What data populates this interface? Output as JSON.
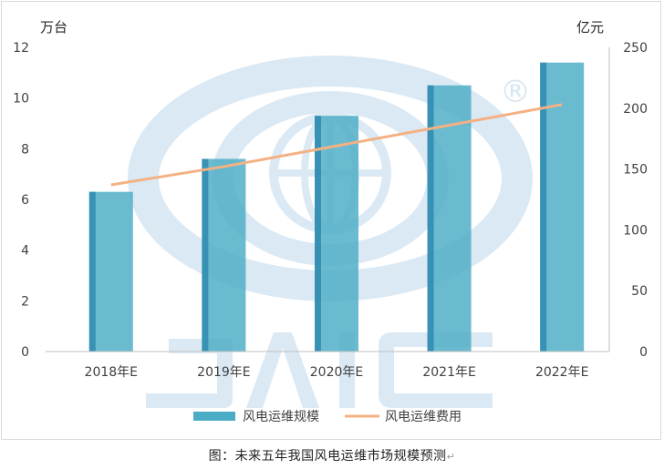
{
  "chart_data": {
    "type": "bar+line",
    "title": "",
    "categories": [
      "2018年E",
      "2019年E",
      "2020年E",
      "2021年E",
      "2022年E"
    ],
    "series": [
      {
        "name": "风电运维规模",
        "type": "bar",
        "axis": "left",
        "values": [
          6.3,
          7.6,
          9.3,
          10.5,
          11.4
        ],
        "color": "#4bacc6"
      },
      {
        "name": "风电运维费用",
        "type": "line",
        "axis": "right",
        "values": [
          137,
          152,
          169,
          186,
          203
        ],
        "color": "#f4b183"
      }
    ],
    "y_left": {
      "label": "万台",
      "range": [
        0,
        12
      ],
      "ticks": [
        0,
        2,
        4,
        6,
        8,
        10,
        12
      ]
    },
    "y_right": {
      "label": "亿元",
      "range": [
        0,
        250
      ],
      "ticks": [
        0,
        50,
        100,
        150,
        200,
        250
      ]
    },
    "grid": true,
    "legend_position": "bottom"
  },
  "watermark": {
    "text": "JAIC",
    "registered_mark": "®",
    "color": "#d6e7f2"
  },
  "caption": {
    "text": "图：未来五年我国风电运维市场规模预测",
    "mark": "↵"
  }
}
